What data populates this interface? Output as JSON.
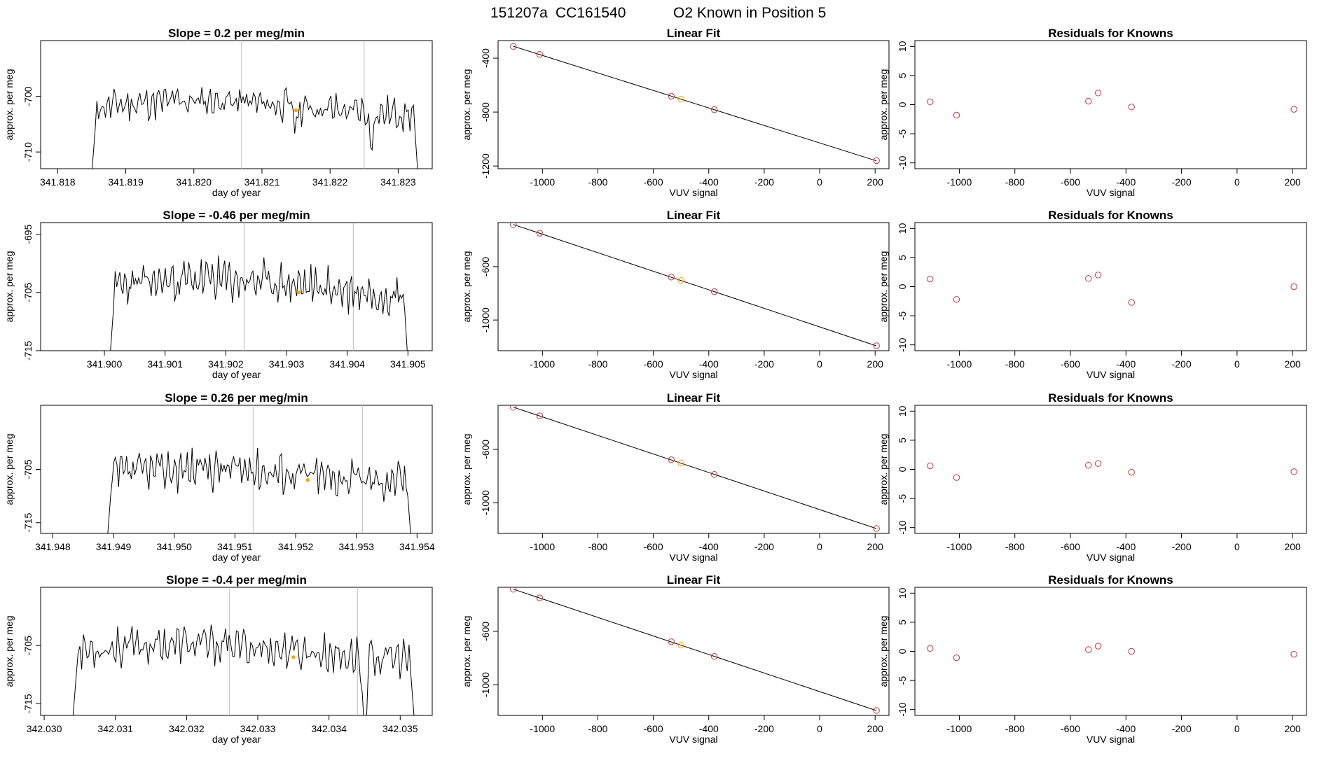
{
  "suptitle": {
    "run_id": "151207a",
    "cylinder": "CC161540",
    "description": "O2 Known in Position  5"
  },
  "colors": {
    "trace": "#000000",
    "vline": "#bebebe",
    "known_point": "#cd3333",
    "current_point": "#ffa500"
  },
  "chart_data": [
    {
      "type": "line",
      "row": 0,
      "panel": "timeseries",
      "title": "Slope =  0.2  per meg/min",
      "xlabel": "day of year",
      "ylabel": "approx. per meg",
      "xlim": [
        341.81775,
        341.8235
      ],
      "ylim": [
        -713,
        -690
      ],
      "xticks": [
        "341.818",
        "341.819",
        "341.820",
        "341.821",
        "341.822",
        "341.823"
      ],
      "yticks": [
        "-700",
        "-710"
      ],
      "ytick_values": [
        -700,
        -710
      ],
      "x_start": 341.8185,
      "x_end": 341.8233,
      "vlines": [
        341.8207,
        341.8225
      ],
      "highlight": {
        "x": 341.8215,
        "y": -702.5
      },
      "trace": {
        "base": -702,
        "amp": 2.6,
        "start_level": -714,
        "end_level": -716,
        "seed": 11,
        "dips": [
          [
            341.8215,
            -3.5
          ],
          [
            341.8226,
            -5.5
          ]
        ]
      }
    },
    {
      "type": "scatter",
      "row": 0,
      "panel": "linear_fit",
      "title": "Linear Fit",
      "xlabel": "VUV signal",
      "ylabel": "approx. per meg",
      "xlim": [
        -1160,
        250
      ],
      "ylim": [
        -1220,
        -270
      ],
      "xticks": [
        "-1000",
        "-800",
        "-600",
        "-400",
        "-200",
        "0",
        "200"
      ],
      "yticks": [
        "-400",
        "-800",
        "-1200"
      ],
      "ytick_values": [
        -400,
        -800,
        -1200
      ],
      "fit_line": [
        [
          -1105,
          -312
        ],
        [
          205,
          -1162
        ]
      ],
      "points": [
        {
          "x": -1105,
          "y": -313,
          "current": false
        },
        {
          "x": -1010,
          "y": -372,
          "current": false
        },
        {
          "x": -535,
          "y": -682,
          "current": false
        },
        {
          "x": -500,
          "y": -704,
          "current": true
        },
        {
          "x": -380,
          "y": -782,
          "current": false
        },
        {
          "x": 205,
          "y": -1160,
          "current": false
        }
      ]
    },
    {
      "type": "scatter",
      "row": 0,
      "panel": "residuals",
      "title": "Residuals for Knowns",
      "xlabel": "VUV signal",
      "ylabel": "approx. per meg",
      "xlim": [
        -1160,
        250
      ],
      "ylim": [
        -11,
        11
      ],
      "xticks": [
        "-1000",
        "-800",
        "-600",
        "-400",
        "-200",
        "0",
        "200"
      ],
      "yticks": [
        "10",
        "5",
        "0",
        "-5",
        "-10"
      ],
      "ytick_values": [
        10,
        5,
        0,
        -5,
        -10
      ],
      "points": [
        {
          "x": -1105,
          "y": 0.5
        },
        {
          "x": -1010,
          "y": -1.8
        },
        {
          "x": -535,
          "y": 0.6
        },
        {
          "x": -500,
          "y": 2.0
        },
        {
          "x": -380,
          "y": -0.4
        },
        {
          "x": 205,
          "y": -0.8
        }
      ]
    },
    {
      "type": "line",
      "row": 1,
      "panel": "timeseries",
      "title": "Slope =  -0.46  per meg/min",
      "xlabel": "day of year",
      "ylabel": "approx. per meg",
      "xlim": [
        341.89895,
        341.9054
      ],
      "ylim": [
        -715,
        -693
      ],
      "xticks": [
        "341.900",
        "341.901",
        "341.902",
        "341.903",
        "341.904",
        "341.905"
      ],
      "yticks": [
        "-695",
        "-705",
        "-715"
      ],
      "ytick_values": [
        -695,
        -705,
        -715
      ],
      "x_start": 341.9001,
      "x_end": 341.905,
      "vlines": [
        341.9023,
        341.9041
      ],
      "highlight": {
        "x": 341.9032,
        "y": -705
      },
      "trace": {
        "base": -704,
        "amp": 3.2,
        "start_level": -715,
        "end_level": -717,
        "seed": 23,
        "dips": []
      }
    },
    {
      "type": "scatter",
      "row": 1,
      "panel": "linear_fit",
      "title": "Linear Fit",
      "xlabel": "VUV signal",
      "ylabel": "approx. per meg",
      "xlim": [
        -1160,
        250
      ],
      "ylim": [
        -1230,
        -270
      ],
      "xticks": [
        "-1000",
        "-800",
        "-600",
        "-400",
        "-200",
        "0",
        "200"
      ],
      "yticks": [
        "-600",
        "-1000"
      ],
      "ytick_values": [
        -600,
        -1000
      ],
      "fit_line": [
        [
          -1105,
          -284
        ],
        [
          205,
          -1194
        ]
      ],
      "points": [
        {
          "x": -1105,
          "y": -285,
          "current": false
        },
        {
          "x": -1010,
          "y": -349,
          "current": false
        },
        {
          "x": -535,
          "y": -678,
          "current": false
        },
        {
          "x": -500,
          "y": -703,
          "current": true
        },
        {
          "x": -380,
          "y": -788,
          "current": false
        },
        {
          "x": 205,
          "y": -1193,
          "current": false
        }
      ]
    },
    {
      "type": "scatter",
      "row": 1,
      "panel": "residuals",
      "title": "Residuals for Knowns",
      "xlabel": "VUV signal",
      "ylabel": "approx. per meg",
      "xlim": [
        -1160,
        250
      ],
      "ylim": [
        -11,
        11
      ],
      "xticks": [
        "-1000",
        "-800",
        "-600",
        "-400",
        "-200",
        "0",
        "200"
      ],
      "yticks": [
        "10",
        "5",
        "0",
        "-5",
        "-10"
      ],
      "ytick_values": [
        10,
        5,
        0,
        -5,
        -10
      ],
      "points": [
        {
          "x": -1105,
          "y": 1.3
        },
        {
          "x": -1010,
          "y": -2.2
        },
        {
          "x": -535,
          "y": 1.4
        },
        {
          "x": -500,
          "y": 2.0
        },
        {
          "x": -380,
          "y": -2.7
        },
        {
          "x": 205,
          "y": 0.0
        }
      ]
    },
    {
      "type": "line",
      "row": 2,
      "panel": "timeseries",
      "title": "Slope =  0.26  per meg/min",
      "xlabel": "day of year",
      "ylabel": "approx. per meg",
      "xlim": [
        341.9478,
        341.95425
      ],
      "ylim": [
        -717,
        -693
      ],
      "xticks": [
        "341.948",
        "341.949",
        "341.950",
        "341.951",
        "341.952",
        "341.953",
        "341.954"
      ],
      "yticks": [
        "-705",
        "-715"
      ],
      "ytick_values": [
        -705,
        -715
      ],
      "x_start": 341.9489,
      "x_end": 341.9539,
      "vlines": [
        341.9513,
        341.9531
      ],
      "highlight": {
        "x": 341.9522,
        "y": -707
      },
      "trace": {
        "base": -706,
        "amp": 3.4,
        "start_level": -718,
        "end_level": -718,
        "seed": 37,
        "dips": []
      }
    },
    {
      "type": "scatter",
      "row": 2,
      "panel": "linear_fit",
      "title": "Linear Fit",
      "xlabel": "VUV signal",
      "ylabel": "approx. per meg",
      "xlim": [
        -1160,
        250
      ],
      "ylim": [
        -1230,
        -270
      ],
      "xticks": [
        "-1000",
        "-800",
        "-600",
        "-400",
        "-200",
        "0",
        "200"
      ],
      "yticks": [
        "-600",
        "-1000"
      ],
      "ytick_values": [
        -600,
        -1000
      ],
      "fit_line": [
        [
          -1105,
          -284
        ],
        [
          205,
          -1194
        ]
      ],
      "points": [
        {
          "x": -1105,
          "y": -285,
          "current": false
        },
        {
          "x": -1010,
          "y": -349,
          "current": false
        },
        {
          "x": -535,
          "y": -678,
          "current": false
        },
        {
          "x": -500,
          "y": -703,
          "current": true
        },
        {
          "x": -380,
          "y": -788,
          "current": false
        },
        {
          "x": 205,
          "y": -1193,
          "current": false
        }
      ]
    },
    {
      "type": "scatter",
      "row": 2,
      "panel": "residuals",
      "title": "Residuals for Knowns",
      "xlabel": "VUV signal",
      "ylabel": "approx. per meg",
      "xlim": [
        -1160,
        250
      ],
      "ylim": [
        -11,
        11
      ],
      "xticks": [
        "-1000",
        "-800",
        "-600",
        "-400",
        "-200",
        "0",
        "200"
      ],
      "yticks": [
        "10",
        "5",
        "0",
        "-5",
        "-10"
      ],
      "ytick_values": [
        10,
        5,
        0,
        -5,
        -10
      ],
      "points": [
        {
          "x": -1105,
          "y": 0.6
        },
        {
          "x": -1010,
          "y": -1.4
        },
        {
          "x": -535,
          "y": 0.7
        },
        {
          "x": -500,
          "y": 1.0
        },
        {
          "x": -380,
          "y": -0.5
        },
        {
          "x": 205,
          "y": -0.4
        }
      ]
    },
    {
      "type": "line",
      "row": 3,
      "panel": "timeseries",
      "title": "Slope =  -0.4  per meg/min",
      "xlabel": "day of year",
      "ylabel": "approx. per meg",
      "xlim": [
        342.02995,
        342.03545
      ],
      "ylim": [
        -717,
        -695
      ],
      "xticks": [
        "342.030",
        "342.031",
        "342.032",
        "342.033",
        "342.034",
        "342.035"
      ],
      "yticks": [
        "-705",
        "-715"
      ],
      "ytick_values": [
        -705,
        -715
      ],
      "x_start": 342.0304,
      "x_end": 342.0352,
      "vlines": [
        342.0326,
        342.0344
      ],
      "highlight": {
        "x": 342.0335,
        "y": -707
      },
      "trace": {
        "base": -706,
        "amp": 2.8,
        "start_level": -718,
        "end_level": -718,
        "seed": 53,
        "dips": [
          [
            342.0345,
            -14
          ]
        ]
      }
    },
    {
      "type": "scatter",
      "row": 3,
      "panel": "linear_fit",
      "title": "Linear Fit",
      "xlabel": "VUV signal",
      "ylabel": "approx. per meg",
      "xlim": [
        -1160,
        250
      ],
      "ylim": [
        -1230,
        -270
      ],
      "xticks": [
        "-1000",
        "-800",
        "-600",
        "-400",
        "-200",
        "0",
        "200"
      ],
      "yticks": [
        "-600",
        "-1000"
      ],
      "ytick_values": [
        -600,
        -1000
      ],
      "fit_line": [
        [
          -1105,
          -284
        ],
        [
          205,
          -1194
        ]
      ],
      "points": [
        {
          "x": -1105,
          "y": -285,
          "current": false
        },
        {
          "x": -1010,
          "y": -349,
          "current": false
        },
        {
          "x": -535,
          "y": -678,
          "current": false
        },
        {
          "x": -500,
          "y": -703,
          "current": true
        },
        {
          "x": -380,
          "y": -788,
          "current": false
        },
        {
          "x": 205,
          "y": -1193,
          "current": false
        }
      ]
    },
    {
      "type": "scatter",
      "row": 3,
      "panel": "residuals",
      "title": "Residuals for Knowns",
      "xlabel": "VUV signal",
      "ylabel": "approx. per meg",
      "xlim": [
        -1160,
        250
      ],
      "ylim": [
        -11,
        11
      ],
      "xticks": [
        "-1000",
        "-800",
        "-600",
        "-400",
        "-200",
        "0",
        "200"
      ],
      "yticks": [
        "10",
        "5",
        "0",
        "-5",
        "-10"
      ],
      "ytick_values": [
        10,
        5,
        0,
        -5,
        -10
      ],
      "points": [
        {
          "x": -1105,
          "y": 0.5
        },
        {
          "x": -1010,
          "y": -1.1
        },
        {
          "x": -535,
          "y": 0.3
        },
        {
          "x": -500,
          "y": 0.9
        },
        {
          "x": -380,
          "y": 0.0
        },
        {
          "x": 205,
          "y": -0.5
        }
      ]
    }
  ]
}
